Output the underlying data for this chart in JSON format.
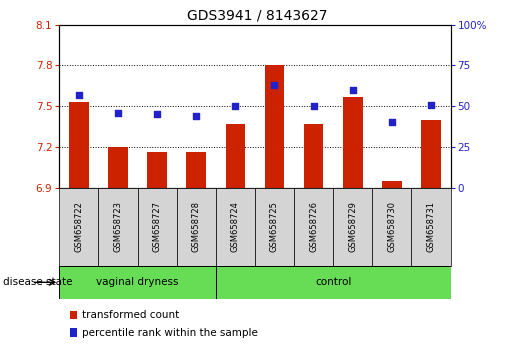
{
  "title": "GDS3941 / 8143627",
  "samples": [
    "GSM658722",
    "GSM658723",
    "GSM658727",
    "GSM658728",
    "GSM658724",
    "GSM658725",
    "GSM658726",
    "GSM658729",
    "GSM658730",
    "GSM658731"
  ],
  "bar_values": [
    7.53,
    7.2,
    7.16,
    7.16,
    7.37,
    7.8,
    7.37,
    7.57,
    6.95,
    7.4
  ],
  "percentile_values": [
    57,
    46,
    45,
    44,
    50,
    63,
    50,
    60,
    40,
    51
  ],
  "ylim": [
    6.9,
    8.1
  ],
  "yticks": [
    6.9,
    7.2,
    7.5,
    7.8,
    8.1
  ],
  "y2lim": [
    0,
    100
  ],
  "y2ticks": [
    0,
    25,
    50,
    75,
    100
  ],
  "bar_color": "#cc2200",
  "point_color": "#2222cc",
  "grid_color": "#000000",
  "background_plot": "#ffffff",
  "vag_count": 4,
  "ctrl_count": 6,
  "vaginal_label": "vaginal dryness",
  "control_label": "control",
  "disease_state_label": "disease state",
  "legend_bar_label": "transformed count",
  "legend_point_label": "percentile rank within the sample",
  "bar_width": 0.5,
  "ylabel_left_color": "#cc2200",
  "ylabel_right_color": "#2222cc",
  "xtick_bg": "#d4d4d4",
  "group_bg": "#66dd55",
  "title_fontsize": 10,
  "tick_fontsize": 7.5,
  "label_fontsize": 7.5,
  "legend_fontsize": 7.5
}
